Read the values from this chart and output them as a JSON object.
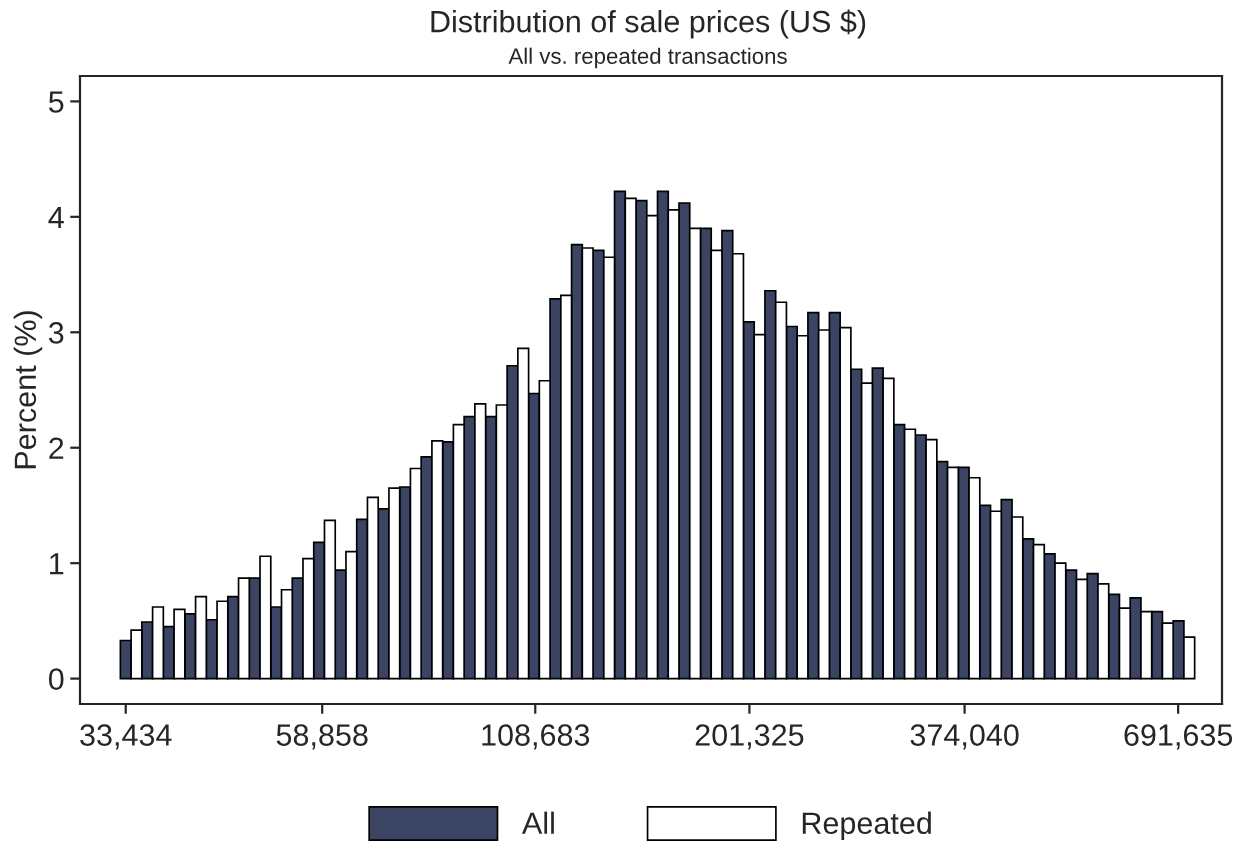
{
  "chart_data": {
    "type": "bar",
    "title": "Distribution of sale prices (US $)",
    "subtitle": "All vs. repeated transactions",
    "ylabel": "Percent (%)",
    "x": [
      33956,
      36122,
      38427,
      40879,
      43487,
      46262,
      49213,
      52353,
      55693,
      59246,
      63026,
      67047,
      71325,
      75876,
      80717,
      85867,
      91345,
      97173,
      103373,
      109968,
      116984,
      124448,
      132388,
      140834,
      149820,
      159379,
      169548,
      180365,
      191873,
      204115,
      217138,
      230992,
      245730,
      261408,
      278086,
      295828,
      314702,
      334781,
      356140,
      378862,
      403034,
      428748,
      456103,
      485203,
      516160,
      549092,
      584125,
      621393,
      661039,
      703214
    ],
    "series": [
      {
        "name": "All",
        "color": "#3b4563",
        "values": [
          0.33,
          0.49,
          0.45,
          0.56,
          0.51,
          0.71,
          0.87,
          0.62,
          0.87,
          1.18,
          0.94,
          1.38,
          1.47,
          1.66,
          1.92,
          2.05,
          2.27,
          2.27,
          2.71,
          2.47,
          3.29,
          3.76,
          3.71,
          4.22,
          4.14,
          4.22,
          4.12,
          3.9,
          3.88,
          3.09,
          3.36,
          3.05,
          3.17,
          3.17,
          2.68,
          2.69,
          2.2,
          2.11,
          1.88,
          1.83,
          1.5,
          1.55,
          1.21,
          1.08,
          0.94,
          0.91,
          0.73,
          0.7,
          0.58,
          0.5
        ]
      },
      {
        "name": "Repeated",
        "color": "#ffffff",
        "values": [
          0.42,
          0.62,
          0.6,
          0.71,
          0.67,
          0.87,
          1.06,
          0.77,
          1.04,
          1.37,
          1.1,
          1.57,
          1.65,
          1.82,
          2.06,
          2.2,
          2.38,
          2.37,
          2.86,
          2.58,
          3.32,
          3.73,
          3.65,
          4.16,
          4.01,
          4.06,
          3.9,
          3.71,
          3.68,
          2.98,
          3.26,
          2.97,
          3.02,
          3.04,
          2.56,
          2.6,
          2.16,
          2.07,
          1.83,
          1.74,
          1.45,
          1.4,
          1.16,
          1.0,
          0.86,
          0.82,
          0.61,
          0.58,
          0.48,
          0.36
        ]
      }
    ],
    "log": "x",
    "xlim": [
      29310,
      784700
    ],
    "xticks": [
      {
        "value": 33434,
        "label": "33,434"
      },
      {
        "value": 58858,
        "label": "58,858"
      },
      {
        "value": 108683,
        "label": "108,683"
      },
      {
        "value": 201325,
        "label": "201,325"
      },
      {
        "value": 374040,
        "label": "374,040"
      },
      {
        "value": 691635,
        "label": "691,635"
      }
    ],
    "ylim": [
      -0.22,
      5.22
    ],
    "yticks": [
      0,
      1,
      2,
      3,
      4,
      5
    ],
    "grid": false,
    "legend": "bottom"
  }
}
